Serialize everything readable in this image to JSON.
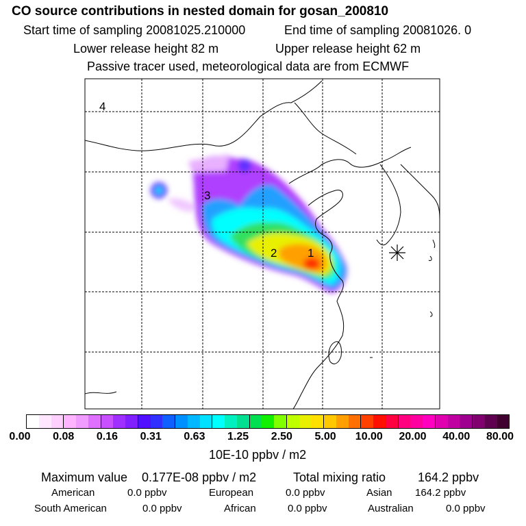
{
  "header": {
    "title": "CO  source contributions in nested domain for gosan_200810",
    "start_label": "Start time of sampling 20081025.210000",
    "end_label": "End time of sampling 20081026.     0",
    "lower_label": "Lower release height   82 m",
    "upper_label": "Upper release height   62 m",
    "note": "Passive tracer used, meteorological data are from ECMWF"
  },
  "map": {
    "region_labels": [
      "1",
      "2",
      "3",
      "4"
    ]
  },
  "colorbar": {
    "colors": [
      "#ffffff",
      "#ffe8ff",
      "#ffd0ff",
      "#ffb4ff",
      "#f09cff",
      "#e070ff",
      "#c850ff",
      "#a030ff",
      "#8020ff",
      "#5010ff",
      "#3030ff",
      "#1060ff",
      "#0090ff",
      "#00b8ff",
      "#00e0ff",
      "#00ffff",
      "#00f0c0",
      "#00e090",
      "#00e050",
      "#10f000",
      "#80ff00",
      "#c0ff00",
      "#e8f000",
      "#ffe000",
      "#ffc800",
      "#ffa000",
      "#ff7000",
      "#ff4000",
      "#ff1000",
      "#ff0040",
      "#ff0080",
      "#ff00a0",
      "#ff00c0",
      "#e000b0",
      "#c000a0",
      "#a00090",
      "#800070",
      "#600050",
      "#400030"
    ],
    "labels": [
      "0.00",
      "0.08",
      "0.16",
      "0.31",
      "0.63",
      "1.25",
      "2.50",
      "5.00",
      "10.00",
      "20.00",
      "40.00",
      "80.00"
    ],
    "unit": "10E-10 ppbv / m2"
  },
  "stats": {
    "max_label": "Maximum value",
    "max_value": "0.177E-08 ppbv / m2",
    "total_label": "Total mixing ratio",
    "total_value": "164.2 ppbv",
    "american_label": "American",
    "american_value": "0.0 ppbv",
    "european_label": "European",
    "european_value": "0.0 ppbv",
    "asian_label": "Asian",
    "asian_value": "164.2 ppbv",
    "south_american_label": "South American",
    "south_american_value": "0.0 ppbv",
    "african_label": "African",
    "african_value": "0.0 ppbv",
    "australian_label": "Australian",
    "australian_value": "0.0 ppbv"
  }
}
